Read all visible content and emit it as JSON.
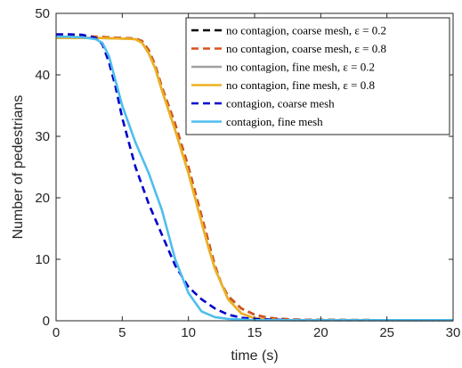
{
  "chart_data": {
    "type": "line",
    "xlabel": "time (s)",
    "ylabel": "Number of pedestrians",
    "xlim": [
      0,
      30
    ],
    "ylim": [
      0,
      50
    ],
    "xticks": [
      0,
      5,
      10,
      15,
      20,
      25,
      30
    ],
    "yticks": [
      0,
      10,
      20,
      30,
      40,
      50
    ],
    "grid": false,
    "legend_position": "top-right",
    "series": [
      {
        "name": "no contagion, coarse mesh, ε = 0.2",
        "color": "#000000",
        "style": "dashed",
        "x": [
          0,
          3,
          5,
          6,
          6.5,
          7,
          7.5,
          8,
          9,
          10,
          11,
          12,
          12.5,
          13,
          14,
          15,
          16,
          17,
          18,
          20,
          25,
          30
        ],
        "y": [
          46.3,
          46.2,
          46.0,
          45.9,
          45.5,
          44.0,
          41.5,
          38.0,
          32.0,
          25.0,
          17.0,
          9.0,
          6.0,
          4.0,
          2.0,
          1.0,
          0.5,
          0.3,
          0.2,
          0.15,
          0.1,
          0.1
        ]
      },
      {
        "name": "no contagion, coarse mesh, ε = 0.8",
        "color": "#D95319",
        "style": "dashed",
        "x": [
          0,
          3,
          5,
          6,
          6.5,
          7,
          7.5,
          8,
          9,
          10,
          11,
          12,
          12.5,
          13,
          14,
          15,
          16,
          17,
          18,
          20,
          25,
          30
        ],
        "y": [
          46.3,
          46.2,
          46.0,
          45.9,
          45.5,
          44.0,
          41.5,
          38.0,
          32.0,
          25.0,
          17.0,
          9.0,
          6.0,
          4.0,
          2.0,
          1.0,
          0.5,
          0.3,
          0.2,
          0.15,
          0.1,
          0.1
        ]
      },
      {
        "name": "no contagion, fine mesh, ε = 0.2",
        "color": "#A0A0A0",
        "style": "solid",
        "x": [
          0,
          3,
          5,
          6,
          6.5,
          7,
          7.5,
          8,
          9,
          10,
          11,
          11.5,
          12,
          13,
          14,
          15,
          16,
          17,
          18,
          20,
          25,
          30
        ],
        "y": [
          46.0,
          46.0,
          45.9,
          45.8,
          45.2,
          43.5,
          41.0,
          37.5,
          31.0,
          24.0,
          16.0,
          12.0,
          8.5,
          3.5,
          1.2,
          0.4,
          0.2,
          0.1,
          0.1,
          0.1,
          0.1,
          0.1
        ]
      },
      {
        "name": "no contagion, fine mesh, ε = 0.8",
        "color": "#EDB120",
        "style": "solid",
        "x": [
          0,
          3,
          5,
          6,
          6.5,
          7,
          7.5,
          8,
          9,
          10,
          11,
          11.5,
          12,
          13,
          14,
          15,
          16,
          17,
          18,
          20,
          25,
          30
        ],
        "y": [
          46.0,
          46.0,
          45.9,
          45.8,
          45.2,
          43.5,
          41.0,
          37.5,
          31.0,
          24.0,
          16.0,
          12.0,
          8.5,
          3.5,
          1.2,
          0.4,
          0.2,
          0.1,
          0.1,
          0.1,
          0.1,
          0.1
        ]
      },
      {
        "name": "contagion, coarse mesh",
        "color": "#0000CC",
        "style": "dashed",
        "x": [
          0,
          1,
          2,
          3,
          3.5,
          4,
          4.5,
          5,
          6,
          7,
          8,
          9,
          10,
          11,
          12,
          13,
          14,
          15,
          16,
          18,
          20,
          25,
          30
        ],
        "y": [
          46.6,
          46.6,
          46.5,
          46.0,
          45.0,
          42.0,
          38.0,
          33.0,
          25.0,
          19.0,
          14.0,
          9.0,
          5.5,
          3.5,
          2.0,
          1.0,
          0.5,
          0.3,
          0.2,
          0.1,
          0.1,
          0.1,
          0.1
        ]
      },
      {
        "name": "contagion, fine mesh",
        "color": "#4DBEEE",
        "style": "solid",
        "x": [
          0,
          1,
          2,
          3,
          3.5,
          4,
          4.5,
          5,
          6,
          7,
          8,
          9,
          10,
          11,
          12,
          13,
          14,
          15,
          16,
          18,
          20,
          25,
          30
        ],
        "y": [
          46.2,
          46.2,
          46.1,
          45.8,
          45.2,
          43.0,
          39.0,
          35.0,
          29.0,
          24.0,
          18.0,
          10.0,
          4.5,
          1.5,
          0.6,
          0.3,
          0.2,
          0.1,
          0.1,
          0.1,
          0.1,
          0.1,
          0.1
        ]
      }
    ]
  }
}
